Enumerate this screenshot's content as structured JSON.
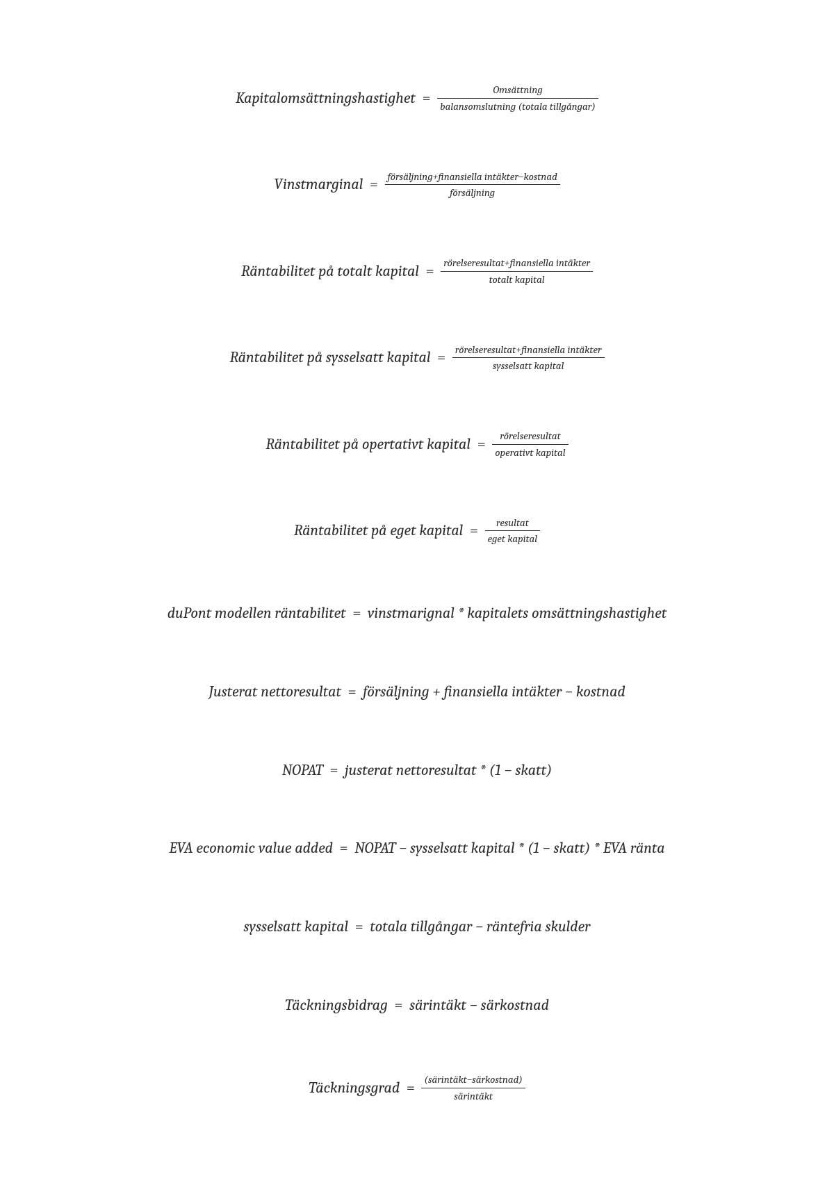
{
  "equals_sign": " = ",
  "formulas": [
    {
      "lhs": "Kapitalomsättningshastighet ",
      "type": "frac",
      "num": "Omsättning",
      "den": "balansomslutning (totala tillgångar)"
    },
    {
      "lhs": "Vinstmarginal",
      "type": "frac",
      "num": "försäljning+finansiella intäkter−kostnad",
      "den": "försäljning"
    },
    {
      "lhs": "Räntabilitet på totalt kapital",
      "type": "frac",
      "num": "rörelseresultat+finansiella intäkter",
      "den": "totalt kapital"
    },
    {
      "lhs": "Räntabilitet på sysselsatt kapital",
      "type": "frac",
      "num": "rörelseresultat+finansiella intäkter",
      "den": "sysselsatt kapital"
    },
    {
      "lhs": "Räntabilitet på opertativt kapital",
      "type": "frac",
      "num": "rörelseresultat",
      "den": "operativt kapital"
    },
    {
      "lhs": "Räntabilitet på eget kapital",
      "type": "frac",
      "num": "resultat",
      "den": "eget kapital"
    },
    {
      "lhs": "duPont modellen räntabilitet",
      "type": "plain",
      "rhs": " vinstmarignal *  kapitalets omsättningshastighet"
    },
    {
      "lhs": "Justerat nettoresultat",
      "type": "plain",
      "rhs": " försäljning  +  finansiella intäkter  −  kostnad"
    },
    {
      "lhs": "NOPAT",
      "type": "plain",
      "rhs": " justerat nettoresultat * (1  −  skatt)"
    },
    {
      "lhs": "EVA economic value added",
      "type": "plain",
      "rhs": " NOPAT  −  sysselsatt kapital * (1  −  skatt) * EVA ränta"
    },
    {
      "lhs": "sysselsatt kapital",
      "type": "plain",
      "rhs": " totala tillgångar  −  räntefria skulder"
    },
    {
      "lhs": "Täckningsbidrag",
      "type": "plain",
      "rhs": " särintäkt  −  särkostnad"
    },
    {
      "lhs": "Täckningsgrad",
      "type": "frac",
      "num": "(särintäkt−särkostnad)",
      "den": "särintäkt"
    }
  ]
}
